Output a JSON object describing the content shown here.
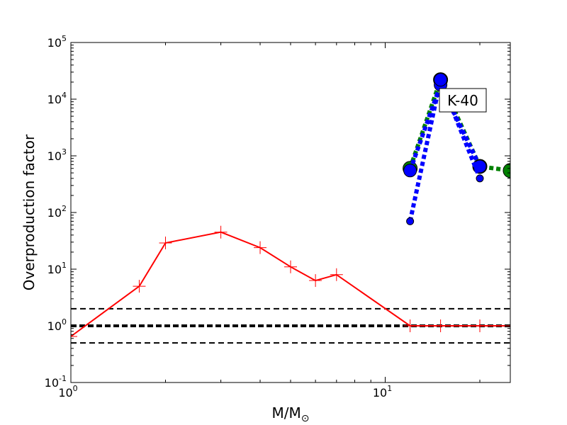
{
  "chart_data": {
    "type": "line",
    "xlabel": "M/M",
    "xlabel_sub": "⊙",
    "ylabel": "Overproduction factor",
    "xscale": "log",
    "yscale": "log",
    "xlim": [
      1,
      25
    ],
    "ylim": [
      0.1,
      100000
    ],
    "x_ticks": [
      {
        "value": 1,
        "base": "10",
        "exp": "0"
      },
      {
        "value": 10,
        "base": "10",
        "exp": "1"
      }
    ],
    "y_ticks": [
      {
        "value": 0.1,
        "base": "10",
        "exp": "-1"
      },
      {
        "value": 1,
        "base": "10",
        "exp": "0"
      },
      {
        "value": 10,
        "base": "10",
        "exp": "1"
      },
      {
        "value": 100,
        "base": "10",
        "exp": "2"
      },
      {
        "value": 1000,
        "base": "10",
        "exp": "3"
      },
      {
        "value": 10000,
        "base": "10",
        "exp": "4"
      },
      {
        "value": 100000,
        "base": "10",
        "exp": "5"
      }
    ],
    "annotation": "K-40",
    "reference_lines": [
      {
        "y": 2,
        "style": "dashed",
        "color": "#000000",
        "weight": "thin"
      },
      {
        "y": 1,
        "style": "dashed",
        "color": "#000000",
        "weight": "thick"
      },
      {
        "y": 0.5,
        "style": "dashed",
        "color": "#000000",
        "weight": "thin"
      }
    ],
    "series": [
      {
        "color": "#ff0000",
        "line": "solid",
        "marker": "plus",
        "x": [
          1.0,
          1.65,
          2.0,
          3.0,
          4.0,
          5.0,
          6.0,
          7.0,
          12.0,
          15.0,
          20.0,
          25.0
        ],
        "y": [
          0.65,
          5.0,
          29.0,
          45.0,
          24.0,
          11.0,
          6.3,
          8.0,
          1.0,
          1.0,
          1.0,
          1.0
        ]
      },
      {
        "color": "#008000",
        "line": "dotted",
        "marker": "circle",
        "x": [
          12.0,
          15.0,
          20.0,
          25.0
        ],
        "y": [
          600,
          22000,
          650,
          550
        ]
      },
      {
        "color": "#0000ff",
        "line": "dotted",
        "marker": "circle",
        "x": [
          12.0,
          15.0,
          20.0
        ],
        "y": [
          550,
          18000,
          650
        ]
      },
      {
        "color": "#0000ff",
        "line": "dotted",
        "marker": "circle-small",
        "x": [
          12.0,
          15.0,
          20.0
        ],
        "y": [
          70,
          22000,
          400
        ]
      }
    ]
  }
}
